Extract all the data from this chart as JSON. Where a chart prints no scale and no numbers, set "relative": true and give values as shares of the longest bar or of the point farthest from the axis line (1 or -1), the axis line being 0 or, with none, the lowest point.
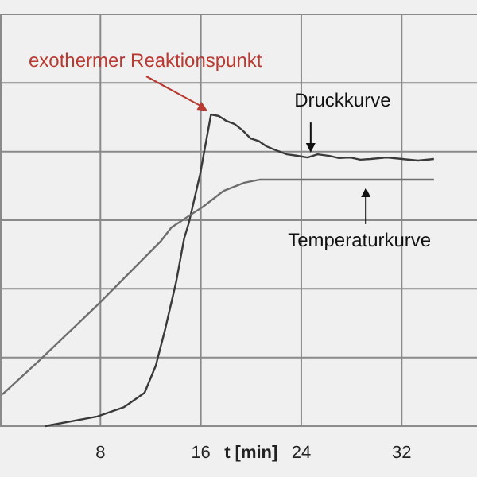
{
  "chart_data": {
    "type": "line",
    "relative": true,
    "xlabel": "t [min]",
    "xlim": [
      0,
      38
    ],
    "xticks": [
      8,
      16,
      24,
      32
    ],
    "grid": true,
    "line_style": "solid",
    "annotations": [
      {
        "text": "exothermer Reaktionspunkt",
        "x": 16.81,
        "y": 1.0
      }
    ],
    "series": [
      {
        "name": "Druckkurve",
        "color": "#3a3a3a",
        "x": [
          3.59,
          7.75,
          9.89,
          11.52,
          12.41,
          13.16,
          14.04,
          14.67,
          15.05,
          15.93,
          16.81,
          17.44,
          18.0,
          18.7,
          19.3,
          19.96,
          20.6,
          21.22,
          22.0,
          22.86,
          23.6,
          24.5,
          25.3,
          26.26,
          27.0,
          27.9,
          28.7,
          29.53,
          30.8,
          32.05,
          33.3,
          34.57
        ],
        "values": [
          0,
          0.031,
          0.061,
          0.107,
          0.194,
          0.311,
          0.464,
          0.602,
          0.653,
          0.806,
          1.0,
          0.995,
          0.98,
          0.969,
          0.95,
          0.923,
          0.915,
          0.898,
          0.885,
          0.872,
          0.868,
          0.862,
          0.872,
          0.867,
          0.86,
          0.862,
          0.855,
          0.857,
          0.862,
          0.857,
          0.852,
          0.857
        ]
      },
      {
        "name": "Temperaturkurve",
        "color": "#6e6e6e",
        "x": [
          0.19,
          3.09,
          7.75,
          12.78,
          13.66,
          16.18,
          17.82,
          19.46,
          20.72,
          34.57
        ],
        "values": [
          0.102,
          0.209,
          0.388,
          0.592,
          0.638,
          0.704,
          0.755,
          0.781,
          0.791,
          0.791
        ]
      }
    ]
  }
}
